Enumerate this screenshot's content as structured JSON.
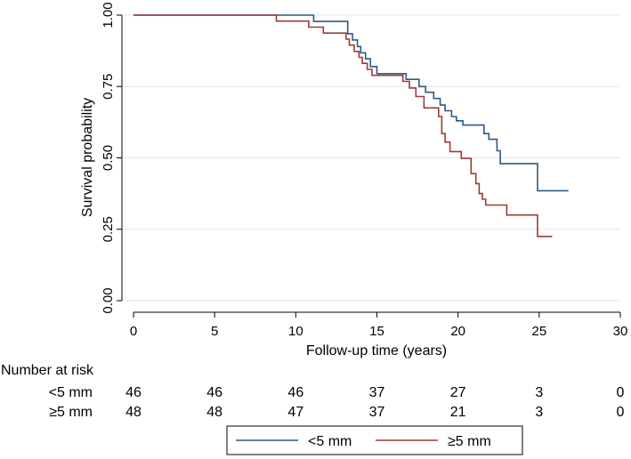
{
  "chart_data": {
    "type": "line",
    "step": true,
    "xlabel": "Follow-up time (years)",
    "ylabel": "Survival probability",
    "xlim": [
      0,
      30
    ],
    "ylim": [
      0,
      1
    ],
    "xticks": [
      "0",
      "5",
      "10",
      "15",
      "20",
      "25",
      "30"
    ],
    "xtick_values": [
      0,
      5,
      10,
      15,
      20,
      25,
      30
    ],
    "yticks": [
      "0.00",
      "0.25",
      "0.50",
      "0.75",
      "1.00"
    ],
    "ytick_values": [
      0,
      0.25,
      0.5,
      0.75,
      1.0
    ],
    "grid": "horizontal",
    "legend_position": "bottom-center",
    "series": [
      {
        "name": "<5 mm",
        "color": "#2c5a85",
        "x": [
          0,
          11.0,
          11.1,
          13.2,
          13.5,
          13.8,
          14.0,
          14.3,
          14.6,
          15.0,
          16.8,
          17.6,
          18.0,
          18.5,
          18.9,
          19.2,
          19.6,
          19.9,
          20.3,
          21.6,
          21.9,
          22.4,
          22.6,
          24.9,
          26.8
        ],
        "y": [
          1.0,
          1.0,
          0.978,
          0.935,
          0.913,
          0.89,
          0.868,
          0.847,
          0.82,
          0.795,
          0.775,
          0.75,
          0.73,
          0.708,
          0.685,
          0.665,
          0.645,
          0.63,
          0.615,
          0.585,
          0.565,
          0.525,
          0.48,
          0.385,
          0.385
        ]
      },
      {
        "name": "≥5 mm",
        "color": "#9b3b3b",
        "x": [
          0,
          8.8,
          10.8,
          11.7,
          13.1,
          13.3,
          13.6,
          13.9,
          14.1,
          14.4,
          14.7,
          16.6,
          17.0,
          17.4,
          17.9,
          18.8,
          19.0,
          19.2,
          19.5,
          20.2,
          20.8,
          21.1,
          21.3,
          21.5,
          21.7,
          23.0,
          24.9,
          25.8
        ],
        "y": [
          1.0,
          0.979,
          0.958,
          0.937,
          0.916,
          0.895,
          0.873,
          0.852,
          0.831,
          0.81,
          0.789,
          0.768,
          0.745,
          0.715,
          0.675,
          0.645,
          0.585,
          0.555,
          0.522,
          0.498,
          0.445,
          0.41,
          0.375,
          0.355,
          0.335,
          0.3,
          0.225,
          0.225
        ]
      }
    ],
    "risk_table": {
      "title": "Number at risk",
      "times": [
        0,
        5,
        10,
        15,
        20,
        25,
        30
      ],
      "rows": [
        {
          "label": "<5 mm",
          "values": [
            "46",
            "46",
            "46",
            "37",
            "27",
            "3",
            "0"
          ]
        },
        {
          "label": "≥5 mm",
          "values": [
            "48",
            "48",
            "47",
            "37",
            "21",
            "3",
            "0"
          ]
        }
      ]
    }
  }
}
